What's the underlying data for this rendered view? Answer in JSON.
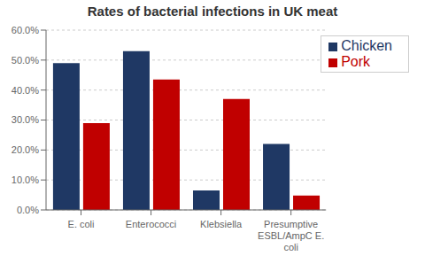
{
  "chart_data": {
    "type": "bar",
    "title": "Rates of bacterial infections in UK meat",
    "categories": [
      "E. coli",
      "Enterococci",
      "Klebsiella",
      "Presumptive\nESBL/AmpC E.\ncoli"
    ],
    "series": [
      {
        "name": "Chicken",
        "color": "#1F3864",
        "values": [
          0.49,
          0.53,
          0.065,
          0.22
        ]
      },
      {
        "name": "Pork",
        "color": "#C00000",
        "values": [
          0.29,
          0.435,
          0.37,
          0.048
        ]
      }
    ],
    "ylim": [
      0,
      0.6
    ],
    "yticks": [
      {
        "value": 0.0,
        "label": "0.0%"
      },
      {
        "value": 0.1,
        "label": "10.0%"
      },
      {
        "value": 0.2,
        "label": "20.0%"
      },
      {
        "value": 0.3,
        "label": "30.0%"
      },
      {
        "value": 0.4,
        "label": "40.0%"
      },
      {
        "value": 0.5,
        "label": "50.0%"
      },
      {
        "value": 0.6,
        "label": "60.0%"
      }
    ],
    "grid": true,
    "legend": "upper right"
  }
}
